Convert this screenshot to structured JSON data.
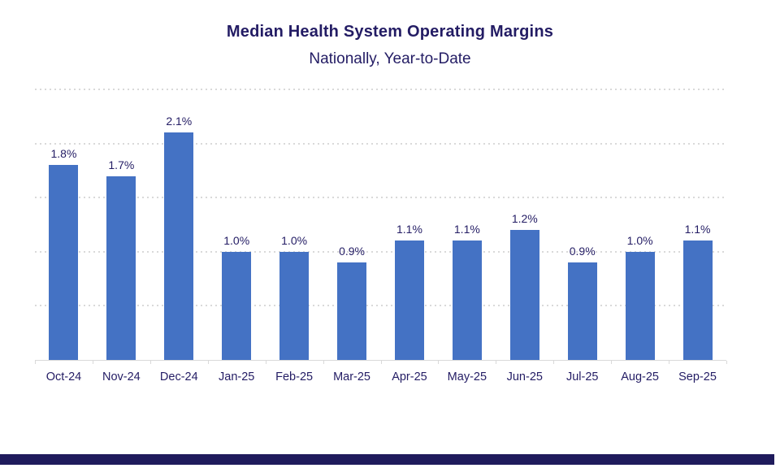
{
  "chart_data": {
    "type": "bar",
    "title": "Median Health System Operating Margins",
    "subtitle": "Nationally, Year-to-Date",
    "categories": [
      "Oct-24",
      "Nov-24",
      "Dec-24",
      "Jan-25",
      "Feb-25",
      "Mar-25",
      "Apr-25",
      "May-25",
      "Jun-25",
      "Jul-25",
      "Aug-25",
      "Sep-25"
    ],
    "values": [
      1.8,
      1.7,
      2.1,
      1.0,
      1.0,
      0.9,
      1.1,
      1.1,
      1.2,
      0.9,
      1.0,
      1.1
    ],
    "data_labels": [
      "1.8%",
      "1.7%",
      "2.1%",
      "1.0%",
      "1.0%",
      "0.9%",
      "1.1%",
      "1.1%",
      "1.2%",
      "0.9%",
      "1.0%",
      "1.1%"
    ],
    "xlabel": "",
    "ylabel": "",
    "ylim": [
      0,
      2.5
    ],
    "gridline_interval": 0.5,
    "grid": "dotted-horizontal",
    "legend_position": "none",
    "y_axis_labels_visible": false
  },
  "colors": {
    "bar_fill": "#4472c4",
    "text_navy": "#231c64",
    "gridline": "#d9d9d9",
    "axis_line": "#d9d9d9",
    "footer_bar": "#1f1b5c",
    "background": "#ffffff"
  }
}
